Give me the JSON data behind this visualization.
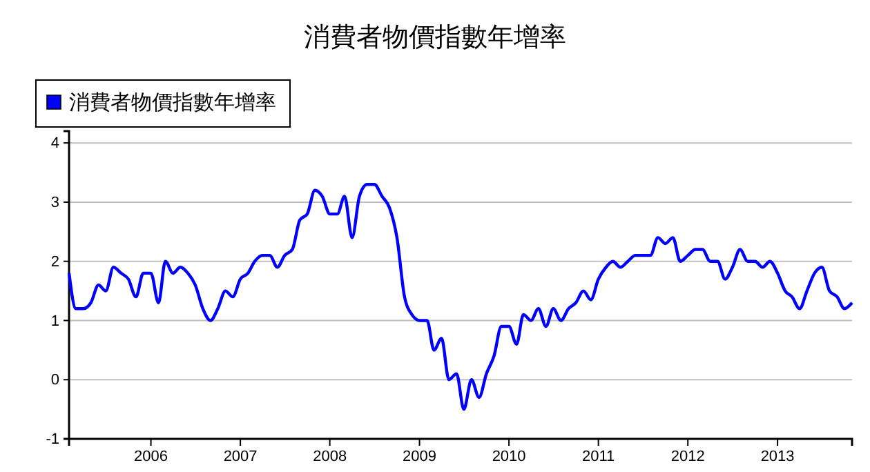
{
  "chart_data": {
    "type": "line",
    "title": "消費者物價指數年增率",
    "x": [
      "2005-02",
      "2005-03",
      "2005-04",
      "2005-05",
      "2005-06",
      "2005-07",
      "2005-08",
      "2005-09",
      "2005-10",
      "2005-11",
      "2005-12",
      "2006-01",
      "2006-02",
      "2006-03",
      "2006-04",
      "2006-05",
      "2006-06",
      "2006-07",
      "2006-08",
      "2006-09",
      "2006-10",
      "2006-11",
      "2006-12",
      "2007-01",
      "2007-02",
      "2007-03",
      "2007-04",
      "2007-05",
      "2007-06",
      "2007-07",
      "2007-08",
      "2007-09",
      "2007-10",
      "2007-11",
      "2007-12",
      "2008-01",
      "2008-02",
      "2008-03",
      "2008-04",
      "2008-05",
      "2008-06",
      "2008-07",
      "2008-08",
      "2008-09",
      "2008-10",
      "2008-11",
      "2008-12",
      "2009-01",
      "2009-02",
      "2009-03",
      "2009-04",
      "2009-05",
      "2009-06",
      "2009-07",
      "2009-08",
      "2009-09",
      "2009-10",
      "2009-11",
      "2009-12",
      "2010-01",
      "2010-02",
      "2010-03",
      "2010-04",
      "2010-05",
      "2010-06",
      "2010-07",
      "2010-08",
      "2010-09",
      "2010-10",
      "2010-11",
      "2010-12",
      "2011-01",
      "2011-02",
      "2011-03",
      "2011-04",
      "2011-05",
      "2011-06",
      "2011-07",
      "2011-08",
      "2011-09",
      "2011-10",
      "2011-11",
      "2011-12",
      "2012-01",
      "2012-02",
      "2012-03",
      "2012-04",
      "2012-05",
      "2012-06",
      "2012-07",
      "2012-08",
      "2012-09",
      "2012-10",
      "2012-11",
      "2012-12",
      "2013-01",
      "2013-02",
      "2013-03",
      "2013-04",
      "2013-05",
      "2013-06",
      "2013-07",
      "2013-08",
      "2013-09",
      "2013-10",
      "2013-11"
    ],
    "series": [
      {
        "name": "消費者物價指數年增率",
        "color": "#0000ff",
        "values": [
          1.8,
          1.2,
          1.2,
          1.3,
          1.6,
          1.5,
          1.9,
          1.8,
          1.7,
          1.4,
          1.8,
          1.8,
          1.3,
          2.0,
          1.8,
          1.9,
          1.8,
          1.6,
          1.2,
          1.0,
          1.2,
          1.5,
          1.4,
          1.7,
          1.8,
          2.0,
          2.1,
          2.1,
          1.9,
          2.1,
          2.2,
          2.7,
          2.8,
          3.2,
          3.1,
          2.8,
          2.8,
          3.1,
          2.4,
          3.1,
          3.3,
          3.3,
          3.1,
          2.9,
          2.4,
          1.4,
          1.1,
          1.0,
          1.0,
          0.5,
          0.7,
          0.0,
          0.1,
          -0.5,
          0.0,
          -0.3,
          0.1,
          0.4,
          0.9,
          0.9,
          0.6,
          1.1,
          1.0,
          1.2,
          0.9,
          1.2,
          1.0,
          1.2,
          1.3,
          1.5,
          1.35,
          1.7,
          1.9,
          2.0,
          1.9,
          2.0,
          2.1,
          2.1,
          2.1,
          2.4,
          2.3,
          2.4,
          2.0,
          2.1,
          2.2,
          2.2,
          2.0,
          2.0,
          1.7,
          1.9,
          2.2,
          2.0,
          2.0,
          1.9,
          2.0,
          1.8,
          1.5,
          1.4,
          1.2,
          1.5,
          1.8,
          1.9,
          1.5,
          1.4,
          1.2,
          1.3
        ]
      }
    ],
    "xlim": [
      "2005-02",
      "2013-11"
    ],
    "xticks": [
      "2006",
      "2007",
      "2008",
      "2009",
      "2010",
      "2011",
      "2012",
      "2013"
    ],
    "ylim": [
      -1,
      4.2
    ],
    "yticks": [
      -1,
      0,
      1,
      2,
      3,
      4
    ],
    "grid": "y",
    "legend": "top left",
    "marker": "none",
    "line_style": "solid"
  }
}
